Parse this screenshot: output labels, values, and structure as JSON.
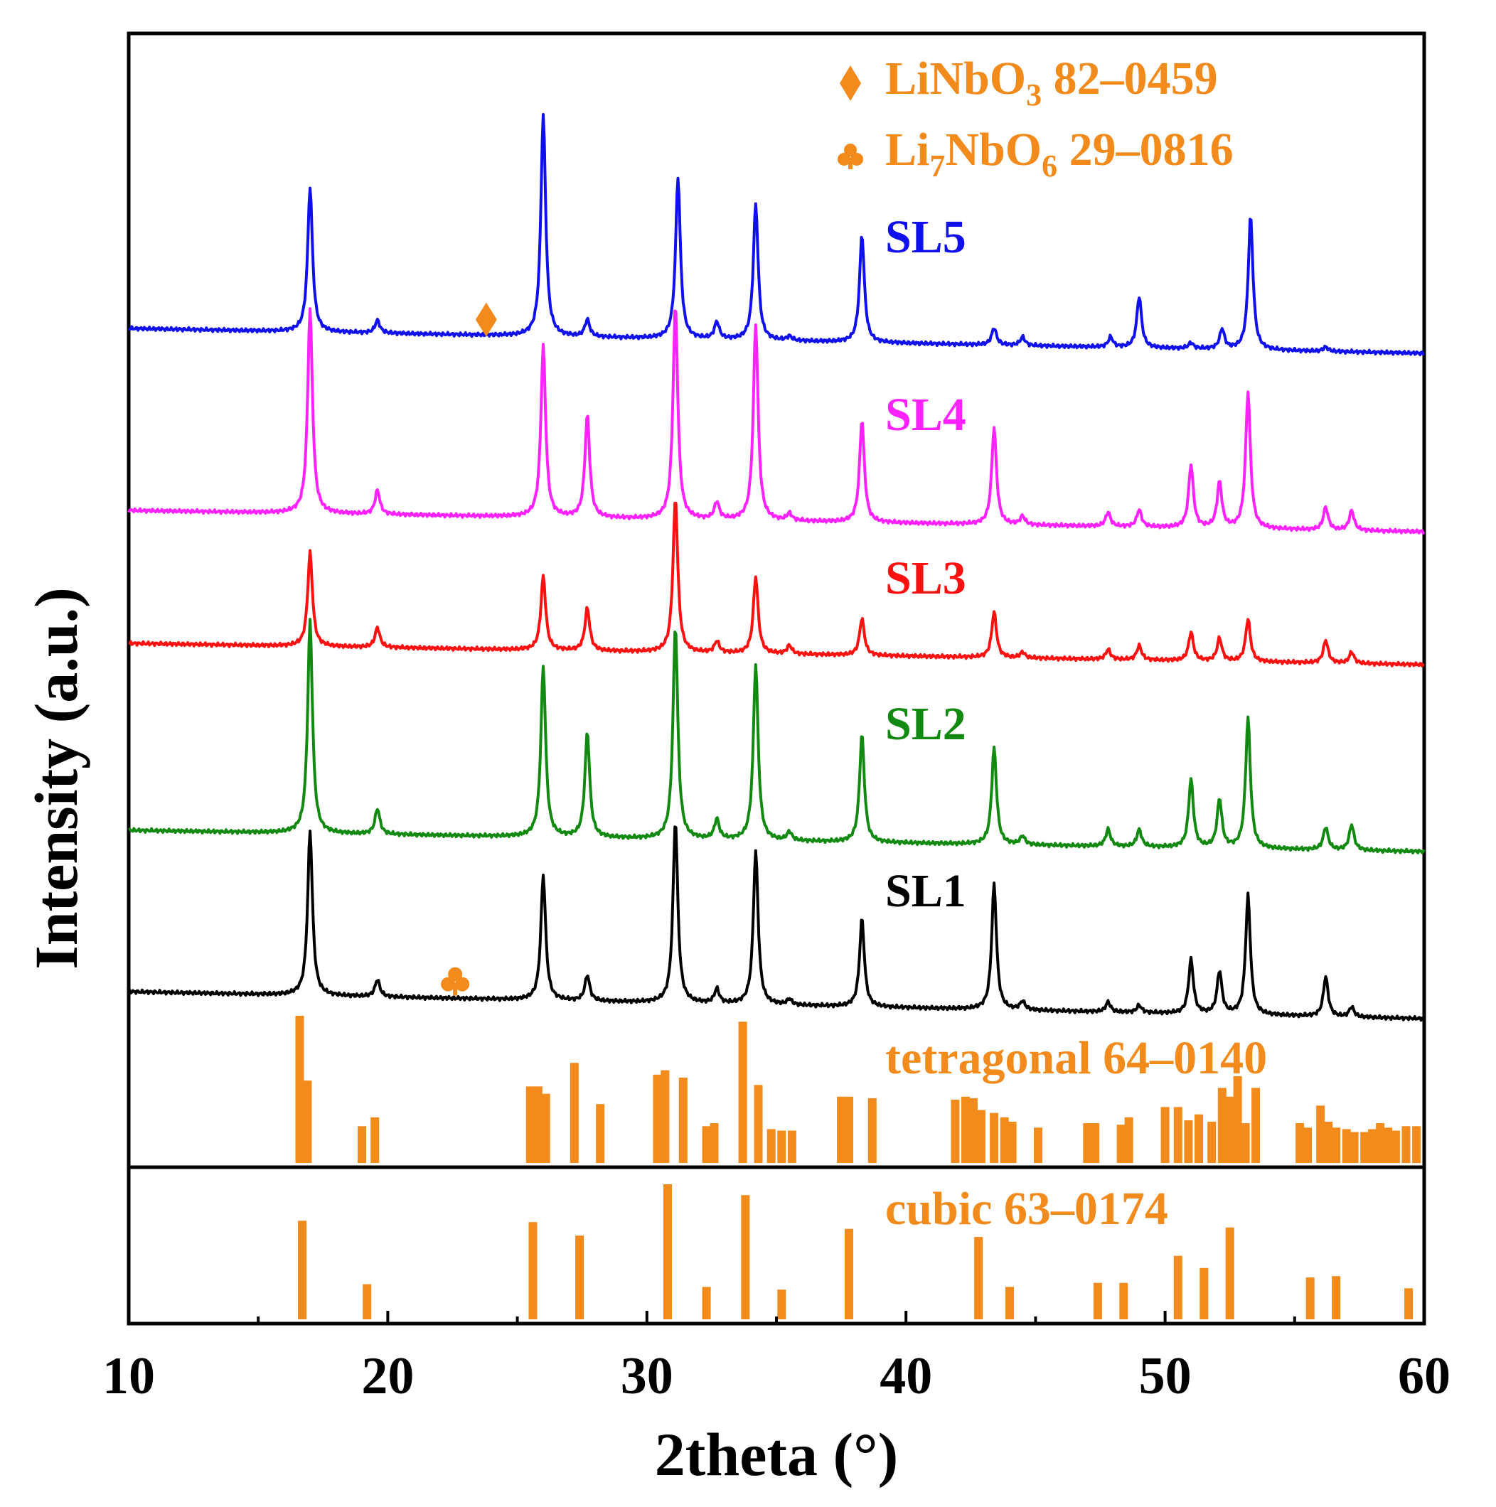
{
  "chart_data": {
    "type": "line",
    "title": "",
    "xlabel": "2theta (°)",
    "ylabel": "Intensity (a.u.)",
    "xlim": [
      10,
      60
    ],
    "xticks": [
      "10",
      "20",
      "30",
      "40",
      "50",
      "60"
    ],
    "legend": [
      {
        "name": "LiNbO",
        "sub": "3",
        "rest": " 82–0459",
        "marker": "diamond",
        "color": "#f28a1c"
      },
      {
        "name": "Li",
        "sub": "7",
        "mid": "NbO",
        "sub2": "6",
        "rest": " 29–0816",
        "marker": "club",
        "color": "#f28a1c"
      }
    ],
    "series": [
      {
        "name": "SL5",
        "color": "#1010ee",
        "baseline": 0.92,
        "peaks": [
          [
            17.0,
            5.1
          ],
          [
            19.6,
            0.45
          ],
          [
            26.0,
            7.8
          ],
          [
            27.7,
            0.6
          ],
          [
            31.2,
            5.7
          ],
          [
            32.7,
            0.6
          ],
          [
            34.2,
            4.8
          ],
          [
            35.5,
            0.15
          ],
          [
            38.3,
            3.8
          ],
          [
            43.4,
            0.6
          ],
          [
            44.5,
            0.3
          ],
          [
            47.9,
            0.35
          ],
          [
            49.0,
            1.8
          ],
          [
            51.0,
            0.2
          ],
          [
            52.2,
            0.7
          ],
          [
            53.3,
            4.7
          ],
          [
            56.2,
            0.15
          ]
        ],
        "markers": [
          {
            "x": 23.8,
            "symbol": "diamond"
          }
        ]
      },
      {
        "name": "SL4",
        "color": "#ff22ff",
        "baseline": 0.0,
        "peaks": [
          [
            17.0,
            7.2
          ],
          [
            19.6,
            0.85
          ],
          [
            26.0,
            6.0
          ],
          [
            27.7,
            3.6
          ],
          [
            31.1,
            7.5
          ],
          [
            32.7,
            0.6
          ],
          [
            34.2,
            6.9
          ],
          [
            35.5,
            0.25
          ],
          [
            38.3,
            3.6
          ],
          [
            43.4,
            3.4
          ],
          [
            44.5,
            0.3
          ],
          [
            47.8,
            0.5
          ],
          [
            49.0,
            0.6
          ],
          [
            51.0,
            2.2
          ],
          [
            52.1,
            1.6
          ],
          [
            53.2,
            4.8
          ],
          [
            56.2,
            0.8
          ],
          [
            57.2,
            0.7
          ]
        ],
        "markers": []
      },
      {
        "name": "SL3",
        "color": "#ff1010",
        "baseline": 0.0,
        "peaks": [
          [
            17.0,
            3.3
          ],
          [
            19.6,
            0.7
          ],
          [
            26.0,
            2.6
          ],
          [
            27.7,
            1.5
          ],
          [
            31.1,
            5.4
          ],
          [
            32.7,
            0.4
          ],
          [
            34.2,
            2.7
          ],
          [
            35.5,
            0.3
          ],
          [
            38.3,
            1.3
          ],
          [
            43.4,
            1.6
          ],
          [
            44.5,
            0.2
          ],
          [
            47.8,
            0.35
          ],
          [
            49.0,
            0.5
          ],
          [
            51.0,
            1.0
          ],
          [
            52.1,
            0.8
          ],
          [
            53.2,
            1.5
          ],
          [
            56.2,
            0.8
          ],
          [
            57.2,
            0.4
          ]
        ],
        "markers": []
      },
      {
        "name": "SL2",
        "color": "#128a12",
        "baseline": 0.0,
        "peaks": [
          [
            17.0,
            7.5
          ],
          [
            19.6,
            0.9
          ],
          [
            26.0,
            6.0
          ],
          [
            27.7,
            3.7
          ],
          [
            31.1,
            7.5
          ],
          [
            32.7,
            0.7
          ],
          [
            34.2,
            6.2
          ],
          [
            35.5,
            0.3
          ],
          [
            38.3,
            3.8
          ],
          [
            43.4,
            3.4
          ],
          [
            44.5,
            0.3
          ],
          [
            47.8,
            0.6
          ],
          [
            49.0,
            0.6
          ],
          [
            51.0,
            2.4
          ],
          [
            52.1,
            1.7
          ],
          [
            53.2,
            4.6
          ],
          [
            56.2,
            0.8
          ],
          [
            57.2,
            0.9
          ]
        ],
        "markers": []
      },
      {
        "name": "SL1",
        "color": "#000000",
        "baseline": 0.0,
        "peaks": [
          [
            17.0,
            5.8
          ],
          [
            19.6,
            0.6
          ],
          [
            26.0,
            4.4
          ],
          [
            27.7,
            0.9
          ],
          [
            31.1,
            6.4
          ],
          [
            32.7,
            0.5
          ],
          [
            34.2,
            5.4
          ],
          [
            35.5,
            0.2
          ],
          [
            38.3,
            3.1
          ],
          [
            43.4,
            4.4
          ],
          [
            44.5,
            0.3
          ],
          [
            47.8,
            0.35
          ],
          [
            49.0,
            0.25
          ],
          [
            51.0,
            1.9
          ],
          [
            52.1,
            1.5
          ],
          [
            53.2,
            4.2
          ],
          [
            56.2,
            1.4
          ],
          [
            57.2,
            0.35
          ]
        ],
        "markers": [
          {
            "x": 22.6,
            "symbol": "club"
          }
        ]
      }
    ],
    "reference_patterns": [
      {
        "name": "tetragonal 64–0140",
        "color": "#f28a1c",
        "lines": [
          [
            16.6,
            1.0
          ],
          [
            16.9,
            0.56
          ],
          [
            19.0,
            0.25
          ],
          [
            19.5,
            0.31
          ],
          [
            25.5,
            0.52
          ],
          [
            25.8,
            0.52
          ],
          [
            26.1,
            0.47
          ],
          [
            27.2,
            0.68
          ],
          [
            28.2,
            0.4
          ],
          [
            30.4,
            0.6
          ],
          [
            30.7,
            0.63
          ],
          [
            31.4,
            0.58
          ],
          [
            32.3,
            0.25
          ],
          [
            32.6,
            0.27
          ],
          [
            33.7,
            0.96
          ],
          [
            34.3,
            0.53
          ],
          [
            34.8,
            0.23
          ],
          [
            35.2,
            0.22
          ],
          [
            35.6,
            0.22
          ],
          [
            37.5,
            0.45
          ],
          [
            37.8,
            0.45
          ],
          [
            38.7,
            0.44
          ],
          [
            41.9,
            0.43
          ],
          [
            42.3,
            0.45
          ],
          [
            42.6,
            0.44
          ],
          [
            42.9,
            0.36
          ],
          [
            43.4,
            0.34
          ],
          [
            43.8,
            0.31
          ],
          [
            44.1,
            0.28
          ],
          [
            45.1,
            0.24
          ],
          [
            47.0,
            0.27
          ],
          [
            47.3,
            0.27
          ],
          [
            48.3,
            0.26
          ],
          [
            48.6,
            0.31
          ],
          [
            50.0,
            0.38
          ],
          [
            50.5,
            0.38
          ],
          [
            50.9,
            0.29
          ],
          [
            51.3,
            0.33
          ],
          [
            51.8,
            0.28
          ],
          [
            52.2,
            0.51
          ],
          [
            52.5,
            0.45
          ],
          [
            52.8,
            0.59
          ],
          [
            53.1,
            0.27
          ],
          [
            53.5,
            0.51
          ],
          [
            55.2,
            0.27
          ],
          [
            55.5,
            0.24
          ],
          [
            56.0,
            0.39
          ],
          [
            56.3,
            0.28
          ],
          [
            56.6,
            0.24
          ],
          [
            57.0,
            0.23
          ],
          [
            57.3,
            0.21
          ],
          [
            57.7,
            0.21
          ],
          [
            58.0,
            0.23
          ],
          [
            58.3,
            0.27
          ],
          [
            58.6,
            0.24
          ],
          [
            58.9,
            0.22
          ],
          [
            59.3,
            0.25
          ],
          [
            59.7,
            0.25
          ]
        ]
      },
      {
        "name": "cubic 63–0174",
        "color": "#f28a1c",
        "lines": [
          [
            16.7,
            0.73
          ],
          [
            19.2,
            0.26
          ],
          [
            25.6,
            0.72
          ],
          [
            27.4,
            0.62
          ],
          [
            30.8,
            1.0
          ],
          [
            32.3,
            0.24
          ],
          [
            33.8,
            0.92
          ],
          [
            35.2,
            0.22
          ],
          [
            37.8,
            0.67
          ],
          [
            42.8,
            0.61
          ],
          [
            44.0,
            0.24
          ],
          [
            47.4,
            0.27
          ],
          [
            48.4,
            0.27
          ],
          [
            50.5,
            0.47
          ],
          [
            51.5,
            0.38
          ],
          [
            52.5,
            0.68
          ],
          [
            55.6,
            0.31
          ],
          [
            56.6,
            0.32
          ],
          [
            59.4,
            0.23
          ]
        ]
      }
    ]
  }
}
